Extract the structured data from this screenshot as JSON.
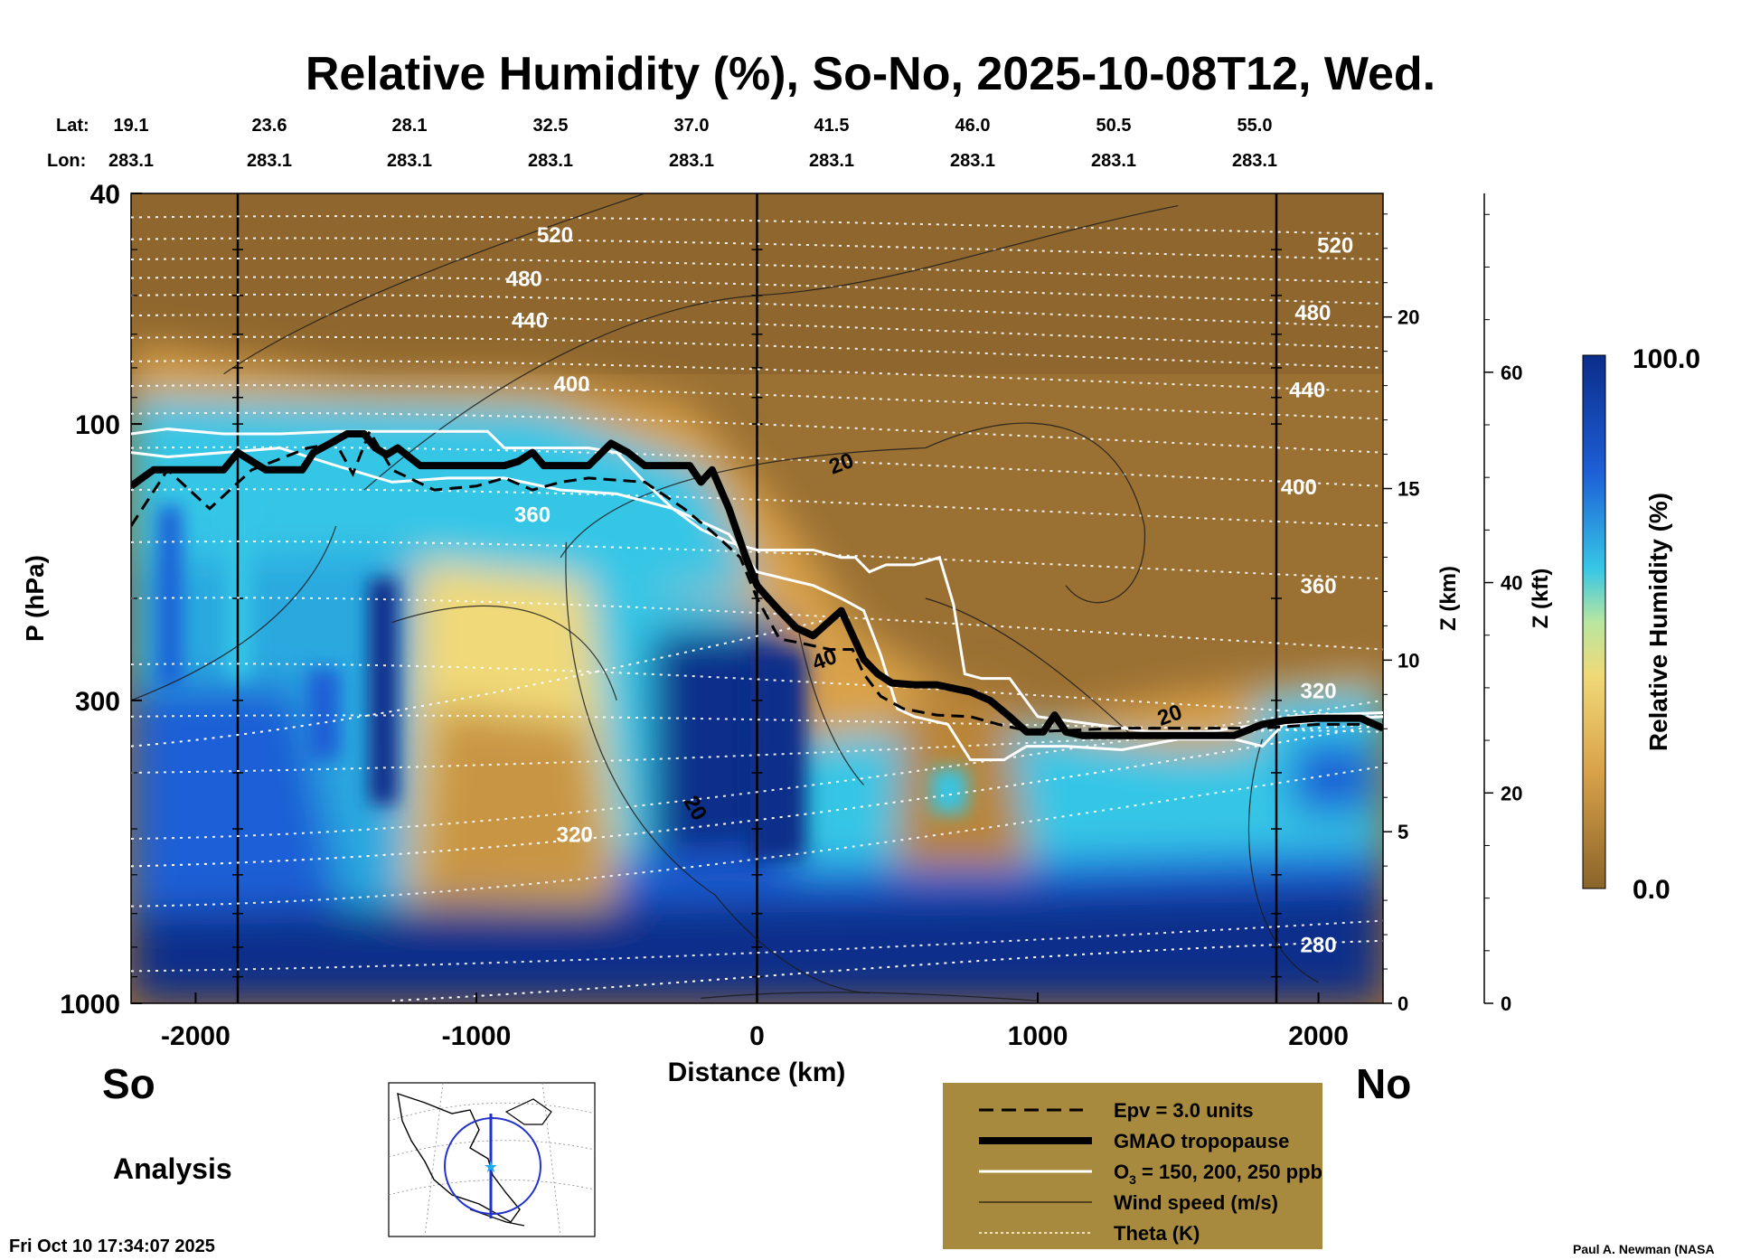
{
  "title": "Relative Humidity (%), So-No, 2025-10-08T12, Wed.",
  "left_label": "So",
  "right_label": "No",
  "analysis_label": "Analysis",
  "timestamp": "Fri Oct 10 17:34:07 2025",
  "credit": "Paul A. Newman (NASA",
  "colors": {
    "moist_dark": "#0b2d8a",
    "moist": "#1d5fd6",
    "cyan": "#36c6e6",
    "yellow": "#f0d978",
    "tan": "#d9a24a",
    "dry": "#9a7033",
    "legend_box": "#a88a3e"
  },
  "chart_data": {
    "type": "heatmap",
    "title": "Relative Humidity (%), So-No, 2025-10-08T12, Wed.",
    "xlabel": "Distance (km)",
    "ylabel": "P (hPa)",
    "xlim": [
      -2230,
      2230
    ],
    "ylim": [
      1000,
      40
    ],
    "x_ticks": [
      -2000,
      -1000,
      0,
      1000,
      2000
    ],
    "y_ticks": [
      40,
      100,
      300,
      1000
    ],
    "z_km_label": "Z (km)",
    "z_km_ticks": [
      0,
      5,
      10,
      15,
      20
    ],
    "z_kft_label": "Z (kft)",
    "z_kft_ticks": [
      0,
      20,
      40,
      60
    ],
    "lat_label": "Lat:",
    "lon_label": "Lon:",
    "lat_values": [
      "19.1",
      "23.6",
      "28.1",
      "32.5",
      "37.0",
      "41.5",
      "46.0",
      "50.5",
      "55.0"
    ],
    "lon_values": [
      "283.1",
      "283.1",
      "283.1",
      "283.1",
      "283.1",
      "283.1",
      "283.1",
      "283.1",
      "283.1"
    ],
    "colorbar": {
      "label": "Relative Humidity (%)",
      "min": 0.0,
      "max": 100.0,
      "min_label": "0.0",
      "max_label": "100.0"
    },
    "theta_labels": [
      {
        "text": "520",
        "x": -720,
        "p": 47
      },
      {
        "text": "480",
        "x": -830,
        "p": 56
      },
      {
        "text": "440",
        "x": -810,
        "p": 66
      },
      {
        "text": "400",
        "x": -660,
        "p": 85
      },
      {
        "text": "360",
        "x": -800,
        "p": 143
      },
      {
        "text": "320",
        "x": -650,
        "p": 510
      },
      {
        "text": "520",
        "x": 2060,
        "p": 49
      },
      {
        "text": "480",
        "x": 1980,
        "p": 64
      },
      {
        "text": "440",
        "x": 1960,
        "p": 87
      },
      {
        "text": "400",
        "x": 1930,
        "p": 128
      },
      {
        "text": "360",
        "x": 2000,
        "p": 190
      },
      {
        "text": "320",
        "x": 2000,
        "p": 288
      },
      {
        "text": "280",
        "x": 2000,
        "p": 790
      }
    ],
    "wind_labels": [
      {
        "text": "20",
        "x": 300,
        "p": 117
      },
      {
        "text": "40",
        "x": 240,
        "p": 255
      },
      {
        "text": "20",
        "x": 1470,
        "p": 318
      },
      {
        "text": "20",
        "x": -220,
        "p": 460
      }
    ],
    "tropopause": {
      "x": [
        -2230,
        -2150,
        -2000,
        -1900,
        -1850,
        -1750,
        -1620,
        -1580,
        -1520,
        -1460,
        -1400,
        -1360,
        -1320,
        -1280,
        -1200,
        -1000,
        -900,
        -850,
        -800,
        -760,
        -700,
        -600,
        -520,
        -460,
        -400,
        -320,
        -240,
        -200,
        -160,
        -100,
        -40,
        0,
        40,
        80,
        140,
        200,
        300,
        380,
        430,
        480,
        560,
        640,
        700,
        760,
        830,
        900,
        960,
        1020,
        1060,
        1100,
        1160,
        1300,
        1500,
        1700,
        1800,
        1880,
        2000,
        2150,
        2230
      ],
      "p": [
        128,
        120,
        120,
        120,
        112,
        120,
        120,
        112,
        108,
        104,
        104,
        110,
        113,
        110,
        118,
        118,
        118,
        116,
        112,
        118,
        118,
        118,
        108,
        112,
        118,
        118,
        118,
        126,
        120,
        140,
        170,
        190,
        200,
        210,
        225,
        232,
        210,
        255,
        270,
        280,
        282,
        282,
        286,
        290,
        300,
        320,
        340,
        340,
        318,
        340,
        345,
        345,
        345,
        345,
        330,
        325,
        322,
        322,
        335
      ]
    },
    "epv_3": {
      "x": [
        -2230,
        -2100,
        -1950,
        -1800,
        -1600,
        -1500,
        -1440,
        -1380,
        -1300,
        -1150,
        -1000,
        -900,
        -800,
        -700,
        -600,
        -400,
        -260,
        -150,
        -60,
        0,
        80,
        140,
        260,
        340,
        380,
        440,
        520,
        640,
        760,
        860,
        980,
        1100,
        1300,
        1600,
        1800,
        2000,
        2230
      ],
      "p": [
        150,
        120,
        140,
        120,
        110,
        108,
        122,
        103,
        120,
        130,
        128,
        124,
        130,
        126,
        124,
        126,
        140,
        155,
        170,
        200,
        235,
        238,
        245,
        245,
        270,
        295,
        310,
        318,
        320,
        330,
        340,
        338,
        335,
        335,
        335,
        330,
        330
      ]
    },
    "ozone_150": {
      "x": [
        -2230,
        -2100,
        -1900,
        -1700,
        -1500,
        -1300,
        -1100,
        -960,
        -900,
        -800,
        -700,
        -600,
        -500,
        -400,
        -300,
        -200,
        -100,
        0,
        100,
        200,
        300,
        350,
        400,
        460,
        560,
        650,
        700,
        740,
        800,
        900,
        1000,
        1200,
        1400,
        1600,
        1800,
        1900,
        2000,
        2230
      ],
      "p": [
        104,
        102,
        104,
        104,
        103,
        103,
        103,
        103,
        110,
        110,
        110,
        110,
        112,
        126,
        140,
        152,
        160,
        165,
        165,
        165,
        170,
        170,
        180,
        175,
        175,
        170,
        205,
        270,
        275,
        275,
        320,
        330,
        340,
        340,
        330,
        330,
        325,
        320
      ]
    },
    "ozone_250": {
      "x": [
        -2230,
        -2100,
        -1900,
        -1700,
        -1500,
        -1300,
        -1100,
        -900,
        -700,
        -500,
        -300,
        -100,
        0,
        100,
        200,
        300,
        380,
        440,
        500,
        560,
        680,
        760,
        880,
        960,
        1100,
        1300,
        1500,
        1700,
        1800,
        1900,
        2000,
        2230
      ],
      "p": [
        112,
        114,
        112,
        110,
        118,
        126,
        124,
        124,
        130,
        132,
        140,
        155,
        180,
        185,
        190,
        200,
        210,
        250,
        310,
        320,
        330,
        380,
        380,
        360,
        360,
        365,
        350,
        350,
        360,
        320,
        318,
        315
      ]
    }
  },
  "legend": {
    "epv": "Epv = 3.0 units",
    "tropopause": "GMAO tropopause",
    "ozone_prefix": "O",
    "ozone_sub": "3",
    "ozone_rest": " = 150, 200, 250 ppb",
    "wind": "Wind speed (m/s)",
    "theta": "Theta (K)"
  }
}
